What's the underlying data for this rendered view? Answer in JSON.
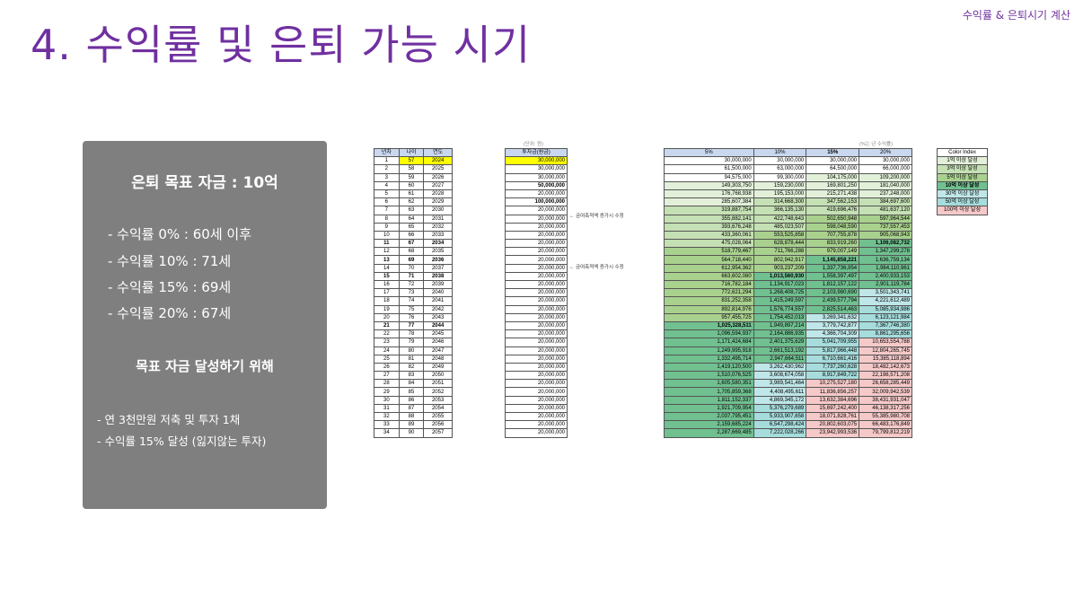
{
  "header": {
    "top_right": "수익률 & 은퇴시기 계산",
    "title": "4. 수익률 및 은퇴 가능 시기"
  },
  "panel": {
    "heading": "은퇴 목표 자금 : 10억",
    "lines": [
      "- 수익률   0% : 60세 이후",
      "- 수익률 10% : 71세",
      "- 수익률 15% : 69세",
      "- 수익률 20% : 67세"
    ],
    "heading2": "목표 자금 달성하기 위해",
    "sublines": [
      "- 연 3천만원 저축 및 투자 1채",
      "- 수익률 15% 달성 (잃지않는 투자)"
    ]
  },
  "table1": {
    "headers": [
      "년차",
      "나이",
      "연도"
    ],
    "rows": [
      [
        "1",
        "57",
        "2024"
      ],
      [
        "2",
        "58",
        "2025"
      ],
      [
        "3",
        "59",
        "2026"
      ],
      [
        "4",
        "60",
        "2027"
      ],
      [
        "5",
        "61",
        "2028"
      ],
      [
        "6",
        "62",
        "2029"
      ],
      [
        "7",
        "63",
        "2030"
      ],
      [
        "8",
        "64",
        "2031"
      ],
      [
        "9",
        "65",
        "2032"
      ],
      [
        "10",
        "66",
        "2033"
      ],
      [
        "11",
        "67",
        "2034"
      ],
      [
        "12",
        "68",
        "2035"
      ],
      [
        "13",
        "69",
        "2036"
      ],
      [
        "14",
        "70",
        "2037"
      ],
      [
        "15",
        "71",
        "2038"
      ],
      [
        "16",
        "72",
        "2039"
      ],
      [
        "17",
        "73",
        "2040"
      ],
      [
        "18",
        "74",
        "2041"
      ],
      [
        "19",
        "75",
        "2042"
      ],
      [
        "20",
        "76",
        "2043"
      ],
      [
        "21",
        "77",
        "2044"
      ],
      [
        "22",
        "78",
        "2045"
      ],
      [
        "23",
        "79",
        "2046"
      ],
      [
        "24",
        "80",
        "2047"
      ],
      [
        "25",
        "81",
        "2048"
      ],
      [
        "26",
        "82",
        "2049"
      ],
      [
        "27",
        "83",
        "2050"
      ],
      [
        "28",
        "84",
        "2051"
      ],
      [
        "29",
        "85",
        "2052"
      ],
      [
        "30",
        "86",
        "2053"
      ],
      [
        "31",
        "87",
        "2054"
      ],
      [
        "32",
        "88",
        "2055"
      ],
      [
        "33",
        "89",
        "2056"
      ],
      [
        "34",
        "90",
        "2057"
      ]
    ]
  },
  "table2": {
    "unit": "(단위: 원)",
    "header": "투자금(원금)",
    "values": [
      "30,000,000",
      "30,000,000",
      "30,000,000",
      "50,000,000",
      "20,000,000",
      "100,000,000",
      "20,000,000",
      "20,000,000",
      "20,000,000",
      "20,000,000",
      "20,000,000",
      "20,000,000",
      "20,000,000",
      "20,000,000",
      "20,000,000",
      "20,000,000",
      "20,000,000",
      "20,000,000",
      "20,000,000",
      "20,000,000",
      "20,000,000",
      "20,000,000",
      "20,000,000",
      "20,000,000",
      "20,000,000",
      "20,000,000",
      "20,000,000",
      "20,000,000",
      "20,000,000",
      "20,000,000",
      "20,000,000",
      "20,000,000",
      "20,000,000",
      "20,000,000"
    ],
    "note": "← 금여축적액 증가시 수정"
  },
  "table3": {
    "unit": "(%는 년 수익률)",
    "headers": [
      "5%",
      "10%",
      "15%",
      "20%"
    ],
    "rows": [
      [
        "30,000,000",
        "30,000,000",
        "30,000,000",
        "30,000,000"
      ],
      [
        "61,500,000",
        "63,000,000",
        "64,500,000",
        "66,000,000"
      ],
      [
        "94,575,000",
        "99,300,000",
        "104,175,000",
        "109,200,000"
      ],
      [
        "149,303,750",
        "159,230,000",
        "169,801,250",
        "181,040,000"
      ],
      [
        "176,768,938",
        "195,153,000",
        "215,271,438",
        "237,248,000"
      ],
      [
        "285,607,384",
        "314,668,300",
        "347,562,153",
        "384,697,600"
      ],
      [
        "319,887,754",
        "366,135,130",
        "419,696,476",
        "481,637,120"
      ],
      [
        "355,882,141",
        "422,748,643",
        "502,650,948",
        "597,964,544"
      ],
      [
        "393,676,248",
        "485,023,507",
        "598,048,590",
        "737,557,453"
      ],
      [
        "433,360,061",
        "553,525,858",
        "707,755,878",
        "905,068,943"
      ],
      [
        "475,028,064",
        "628,878,444",
        "833,919,260",
        "1,106,082,732"
      ],
      [
        "518,779,467",
        "711,766,288",
        "979,007,149",
        "1,347,299,278"
      ],
      [
        "564,718,440",
        "802,942,917",
        "1,145,858,221",
        "1,636,759,134"
      ],
      [
        "612,954,362",
        "903,237,209",
        "1,337,736,954",
        "1,984,110,961"
      ],
      [
        "663,602,080",
        "1,013,560,930",
        "1,558,397,497",
        "2,400,933,153"
      ],
      [
        "716,782,184",
        "1,134,917,023",
        "1,812,157,122",
        "2,901,119,784"
      ],
      [
        "772,621,294",
        "1,268,408,725",
        "2,103,980,690",
        "3,501,343,741"
      ],
      [
        "831,252,358",
        "1,415,249,597",
        "2,439,577,794",
        "4,221,612,489"
      ],
      [
        "892,814,976",
        "1,576,774,557",
        "2,825,514,463",
        "5,085,934,986"
      ],
      [
        "957,455,725",
        "1,754,452,013",
        "3,269,341,632",
        "6,123,121,984"
      ],
      [
        "1,025,328,511",
        "1,949,897,214",
        "3,779,742,877",
        "7,367,746,380"
      ],
      [
        "1,096,594,937",
        "2,164,886,935",
        "4,366,704,309",
        "8,861,295,656"
      ],
      [
        "1,171,424,684",
        "2,401,375,629",
        "5,041,709,955",
        "10,653,554,788"
      ],
      [
        "1,249,995,918",
        "2,661,513,192",
        "5,817,966,448",
        "12,804,265,745"
      ],
      [
        "1,332,495,714",
        "2,947,664,511",
        "6,710,661,416",
        "15,385,118,894"
      ],
      [
        "1,419,120,500",
        "3,262,430,962",
        "7,737,260,628",
        "18,482,142,673"
      ],
      [
        "1,510,076,525",
        "3,608,674,058",
        "8,917,849,722",
        "22,198,571,208"
      ],
      [
        "1,605,580,351",
        "3,989,541,464",
        "10,275,527,180",
        "26,658,285,449"
      ],
      [
        "1,705,859,368",
        "4,408,495,611",
        "11,836,856,257",
        "32,009,942,539"
      ],
      [
        "1,811,152,337",
        "4,869,345,172",
        "13,632,384,696",
        "38,431,931,047"
      ],
      [
        "1,921,709,954",
        "5,376,279,689",
        "15,697,242,400",
        "46,138,317,256"
      ],
      [
        "2,037,795,451",
        "5,933,907,658",
        "18,071,828,761",
        "55,385,980,708"
      ],
      [
        "2,159,685,224",
        "6,547,298,424",
        "20,802,603,075",
        "66,483,176,849"
      ],
      [
        "2,287,669,485",
        "7,222,028,266",
        "23,942,993,536",
        "79,799,812,219"
      ]
    ]
  },
  "legend": {
    "header": "Color Index",
    "items": [
      "1억 이상 달성",
      "3억 이상 달성",
      "5억 이상 달성",
      "10억 이상 달성",
      "30억 이상 달성",
      "50억 이상 달성",
      "100억 이상 달성"
    ]
  },
  "colors": {
    "title": "#7030a0",
    "panel": "#7f7f7f",
    "tier1": "#ffffff",
    "tier2": "#e2f0d9",
    "tier3": "#c5e0b4",
    "tier4": "#a9d18e",
    "tier5": "#70c090",
    "tier6": "#bfe6e8",
    "tier7": "#a6dcdc",
    "tier8": "#f6c9c9"
  }
}
